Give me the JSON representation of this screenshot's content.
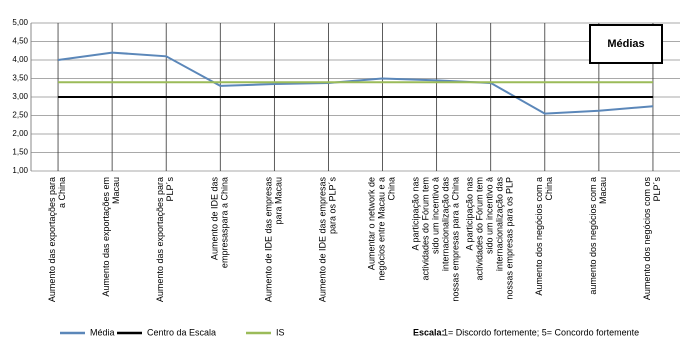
{
  "chart_data": {
    "type": "line",
    "annotation": "Médias",
    "scale_label": "Escala:",
    "scale_text": "1= Discordo fortemente; 5= Concordo  fortemente",
    "categories": [
      "Aumento das exportações para a China",
      "Aumento das exportações em Macau",
      "Aumento das exportações para PLP´s",
      "Aumento de IDE das empresaspara a China",
      "Aumento de IDE das empresas para Macau",
      "Aumento de IDE das empresas para os PLP´s",
      "Aumentar o network de negócios entre Macau e a China",
      "A participação nas actividades do Fórum tem sido um incentivo à internacionalização das nossas empresas para a China",
      "A participação nas actividades do Fórum tem sido um incentivo à internacionalização das nossas empresas para os PLP",
      "Aumento dos negócios com a China",
      "aumento dos negócios com a Macau",
      "Aumento dos negócios com os PLP´s"
    ],
    "series": [
      {
        "name": "Média",
        "color": "#5b87b9",
        "values": [
          4.0,
          4.2,
          4.1,
          3.3,
          3.35,
          3.38,
          3.5,
          3.45,
          3.38,
          2.55,
          2.63,
          2.75
        ]
      },
      {
        "name": "Centro da Escala",
        "color": "#000000",
        "values": [
          3,
          3,
          3,
          3,
          3,
          3,
          3,
          3,
          3,
          3,
          3,
          3
        ]
      },
      {
        "name": "IS",
        "color": "#9bbb59",
        "values": [
          3.4,
          3.4,
          3.4,
          3.4,
          3.4,
          3.4,
          3.4,
          3.4,
          3.4,
          3.4,
          3.4,
          3.4
        ]
      }
    ],
    "ylim": [
      1,
      5
    ],
    "yticks": [
      {
        "value": 1,
        "label": "1,00"
      },
      {
        "value": 1.5,
        "label": "1,50"
      },
      {
        "value": 2,
        "label": "2,00"
      },
      {
        "value": 2.5,
        "label": "2,50"
      },
      {
        "value": 3,
        "label": "3,00"
      },
      {
        "value": 3.5,
        "label": "3,50"
      },
      {
        "value": 4,
        "label": "4,00"
      },
      {
        "value": 4.5,
        "label": "4,50"
      },
      {
        "value": 5,
        "label": "5,00"
      }
    ],
    "grid": true
  }
}
